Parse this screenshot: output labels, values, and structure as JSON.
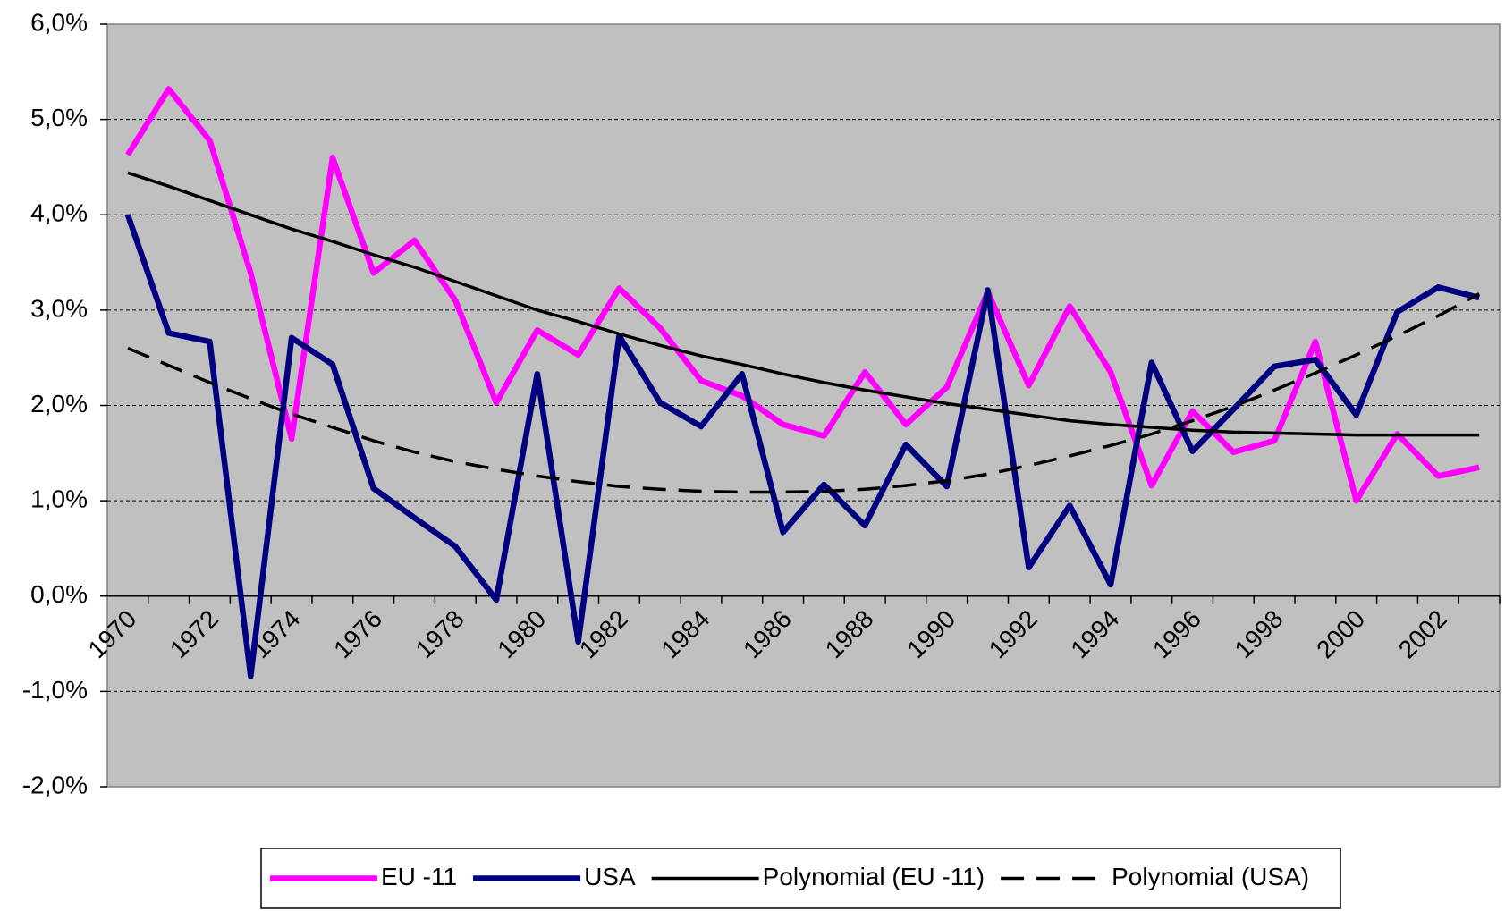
{
  "chart_data": {
    "type": "line",
    "categories": [
      "1970",
      null,
      "1972",
      null,
      "1974",
      null,
      "1976",
      null,
      "1978",
      null,
      "1980",
      null,
      "1982",
      null,
      "1984",
      null,
      "1986",
      null,
      "1988",
      null,
      "1990",
      null,
      "1992",
      null,
      "1994",
      null,
      "1996",
      null,
      "1998",
      null,
      "2000",
      null,
      "2002",
      null
    ],
    "series": [
      {
        "name": "EU -11",
        "color": "#ff00ff",
        "line_style": "solid",
        "trendline": false,
        "values": [
          4.63,
          5.32,
          4.78,
          3.39,
          1.65,
          4.6,
          3.39,
          3.73,
          3.1,
          2.03,
          2.79,
          2.53,
          3.23,
          2.81,
          2.26,
          2.1,
          1.8,
          1.68,
          2.35,
          1.8,
          2.19,
          3.19,
          2.21,
          3.04,
          2.35,
          1.16,
          1.94,
          1.51,
          1.63,
          2.67,
          1.0,
          1.7,
          1.26,
          1.35
        ]
      },
      {
        "name": "USA",
        "color": "#000080",
        "line_style": "solid",
        "trendline": false,
        "values": [
          4.0,
          2.76,
          2.67,
          -0.84,
          2.71,
          2.43,
          1.13,
          0.82,
          0.52,
          -0.04,
          2.33,
          -0.48,
          2.73,
          2.03,
          1.78,
          2.33,
          0.67,
          1.17,
          0.74,
          1.59,
          1.15,
          3.21,
          0.3,
          0.95,
          0.12,
          2.45,
          1.52,
          1.96,
          2.41,
          2.48,
          1.9,
          2.98,
          3.24,
          3.13
        ]
      },
      {
        "name": "Polynomial (EU -11)",
        "color": "#000000",
        "line_style": "solid",
        "trendline": true,
        "values": [
          4.44,
          4.3,
          4.15,
          4.0,
          3.85,
          3.72,
          3.58,
          3.45,
          3.3,
          3.15,
          3.0,
          2.88,
          2.75,
          2.63,
          2.52,
          2.43,
          2.33,
          2.24,
          2.16,
          2.09,
          2.02,
          1.96,
          1.9,
          1.84,
          1.8,
          1.77,
          1.74,
          1.72,
          1.71,
          1.7,
          1.69,
          1.69,
          1.69,
          1.69
        ]
      },
      {
        "name": "Polynomial (USA)",
        "color": "#000000",
        "line_style": "dashed",
        "trendline": true,
        "values": [
          2.6,
          2.42,
          2.24,
          2.07,
          1.91,
          1.77,
          1.63,
          1.51,
          1.41,
          1.33,
          1.26,
          1.2,
          1.15,
          1.12,
          1.1,
          1.09,
          1.09,
          1.1,
          1.12,
          1.16,
          1.21,
          1.28,
          1.37,
          1.47,
          1.58,
          1.7,
          1.84,
          1.99,
          2.16,
          2.34,
          2.53,
          2.73,
          2.94,
          3.17
        ]
      }
    ],
    "ylim": [
      -2,
      6
    ],
    "yticks": [
      {
        "value": -2,
        "label": "-2,0%"
      },
      {
        "value": -1,
        "label": "-1,0%"
      },
      {
        "value": 0,
        "label": "0,0%"
      },
      {
        "value": 1,
        "label": "1,0%"
      },
      {
        "value": 2,
        "label": "2,0%"
      },
      {
        "value": 3,
        "label": "3,0%"
      },
      {
        "value": 4,
        "label": "4,0%"
      },
      {
        "value": 5,
        "label": "5,0%"
      },
      {
        "value": 6,
        "label": "6,0%"
      }
    ],
    "grid": true,
    "plot_background": "#c0c0c0",
    "legend": "bottom"
  }
}
